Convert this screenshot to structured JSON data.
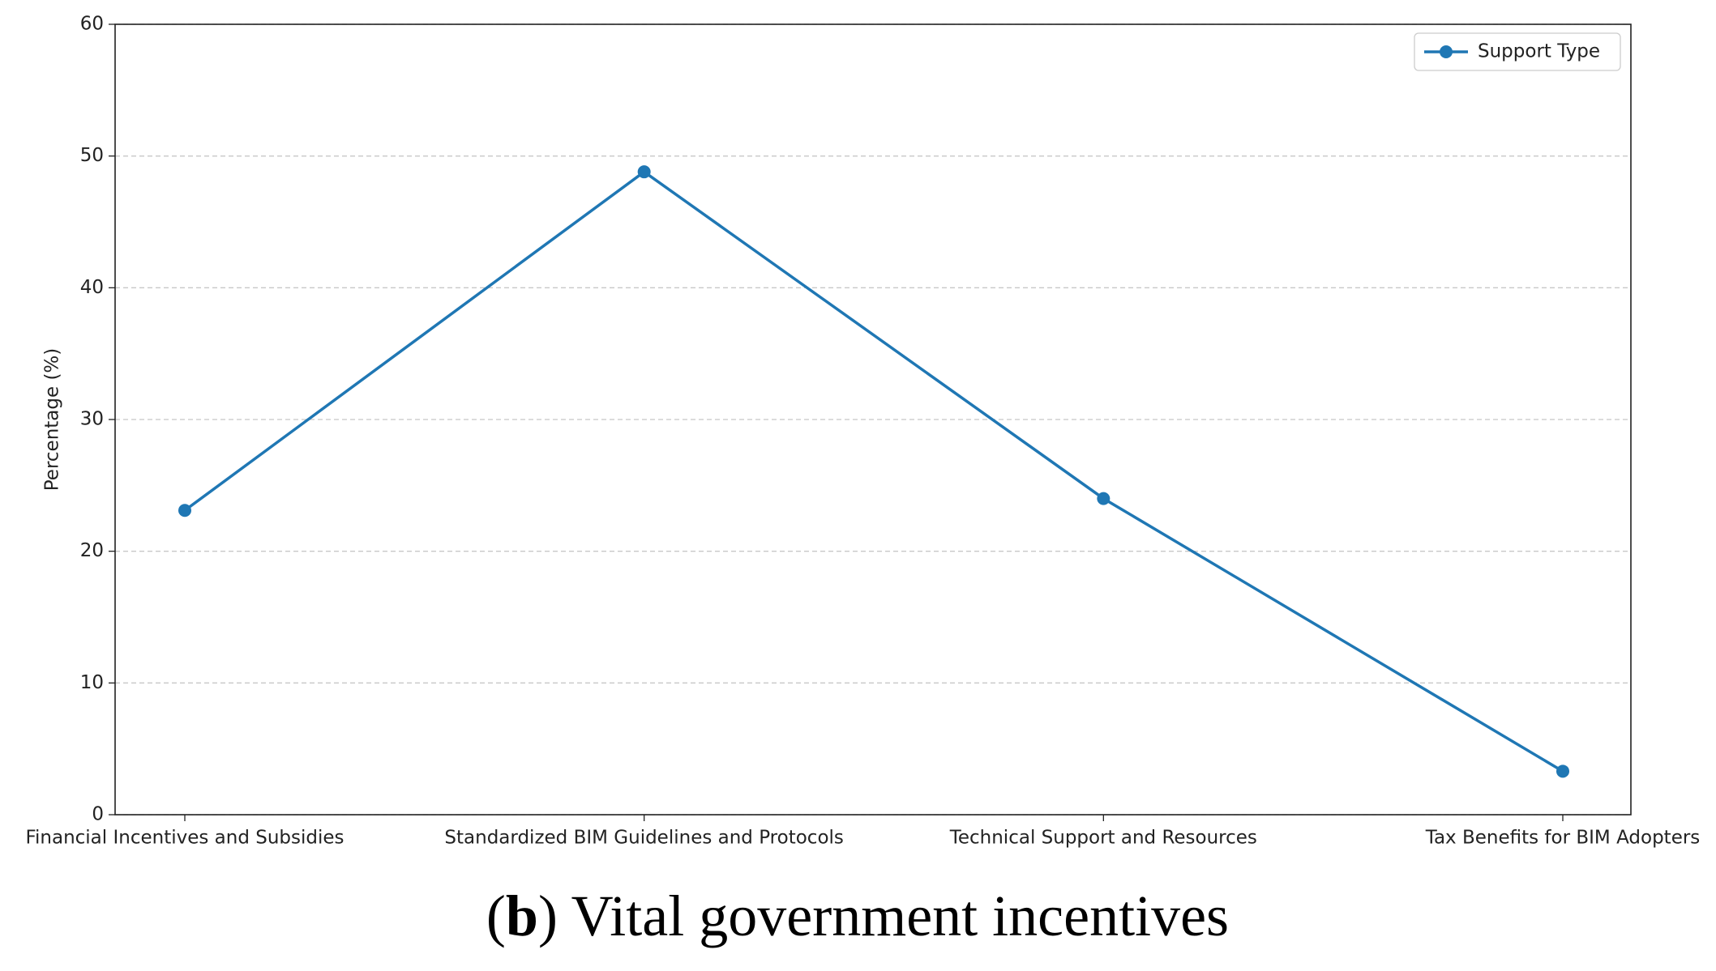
{
  "chart_data": {
    "type": "line",
    "ylabel": "Percentage (%)",
    "categories": [
      "Financial Incentives and Subsidies",
      "Standardized BIM Guidelines and Protocols",
      "Technical Support and Resources",
      "Tax Benefits for BIM Adopters"
    ],
    "series": [
      {
        "name": "Support Type",
        "color": "#1f77b4",
        "values": [
          23.1,
          48.8,
          24.0,
          3.3
        ]
      }
    ],
    "ylim": [
      0,
      60
    ],
    "yticks": [
      0,
      10,
      20,
      30,
      40,
      50,
      60
    ],
    "grid": true,
    "legend": "upper right"
  },
  "caption": {
    "open": "(",
    "label": "b",
    "text": ") Vital government incentives"
  }
}
